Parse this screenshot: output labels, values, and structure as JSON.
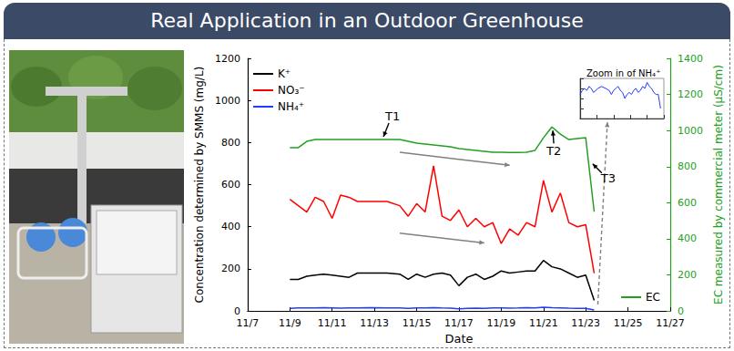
{
  "header": {
    "title": "Real Application in an Outdoor Greenhouse"
  },
  "chart_data": [
    {
      "type": "line",
      "xlabel": "Date",
      "ylabel": "Concentration determined by SMMS (mg/L)",
      "y2label": "EC measured by commercial meter (µS/cm)",
      "x": [
        9,
        9.4,
        9.8,
        10.2,
        10.6,
        11,
        11.4,
        11.8,
        12.2,
        12.8,
        13.6,
        14.2,
        14.6,
        15,
        15.4,
        15.8,
        16.2,
        16.6,
        17,
        17.4,
        17.8,
        18.2,
        18.6,
        19,
        19.4,
        19.8,
        20.2,
        20.6,
        21,
        21.4,
        21.8,
        22.2,
        22.6,
        23,
        23.4
      ],
      "xlim": [
        7,
        27
      ],
      "xticks": [
        {
          "value": 7,
          "label": "11/7"
        },
        {
          "value": 9,
          "label": "11/9"
        },
        {
          "value": 11,
          "label": "11/11"
        },
        {
          "value": 13,
          "label": "11/13"
        },
        {
          "value": 15,
          "label": "11/15"
        },
        {
          "value": 17,
          "label": "11/17"
        },
        {
          "value": 19,
          "label": "11/19"
        },
        {
          "value": 21,
          "label": "11/21"
        },
        {
          "value": 23,
          "label": "11/23"
        },
        {
          "value": 25,
          "label": "11/25"
        },
        {
          "value": 27,
          "label": "11/27"
        }
      ],
      "ylim": [
        0,
        1200
      ],
      "yticks": [
        0,
        200,
        400,
        600,
        800,
        1000,
        1200
      ],
      "y2lim": [
        0,
        1400
      ],
      "y2ticks": [
        0,
        200,
        400,
        600,
        800,
        1000,
        1200,
        1400
      ],
      "grid": false,
      "legend": "upper left",
      "annotations": [
        "T1",
        "T2",
        "T3"
      ],
      "series": [
        {
          "name": "K⁺",
          "color": "#000000",
          "values": [
            150,
            150,
            165,
            170,
            175,
            170,
            165,
            160,
            180,
            180,
            180,
            175,
            150,
            175,
            160,
            175,
            180,
            170,
            120,
            160,
            175,
            150,
            165,
            190,
            180,
            185,
            190,
            190,
            240,
            210,
            200,
            180,
            160,
            170,
            50
          ]
        },
        {
          "name": "NO₃⁻",
          "color": "#ff0000",
          "values": [
            530,
            500,
            470,
            540,
            520,
            440,
            550,
            540,
            520,
            520,
            520,
            500,
            450,
            510,
            470,
            690,
            450,
            430,
            480,
            400,
            440,
            400,
            420,
            320,
            390,
            360,
            420,
            400,
            620,
            470,
            560,
            420,
            400,
            410,
            180
          ]
        },
        {
          "name": "NH₄⁺",
          "color": "#1f3cff",
          "values": [
            12,
            14,
            15,
            14,
            16,
            15,
            13,
            14,
            15,
            16,
            15,
            14,
            12,
            14,
            15,
            16,
            14,
            13,
            10,
            12,
            13,
            12,
            14,
            15,
            13,
            14,
            16,
            15,
            18,
            16,
            15,
            13,
            12,
            12,
            5
          ]
        },
        {
          "name": "EC",
          "color": "#22a022",
          "axis": "y2",
          "values": [
            905,
            905,
            940,
            950,
            950,
            950,
            950,
            950,
            950,
            950,
            950,
            950,
            940,
            930,
            925,
            920,
            915,
            910,
            900,
            895,
            890,
            885,
            880,
            880,
            878,
            878,
            880,
            890,
            960,
            1020,
            980,
            950,
            955,
            960,
            550
          ]
        }
      ]
    },
    {
      "type": "line",
      "title": "Zoom in of NH₄⁺",
      "x": [
        9,
        9.4,
        9.8,
        10.2,
        10.6,
        11,
        11.4,
        11.8,
        12.2,
        12.8,
        13.6,
        14.2,
        14.6,
        15,
        15.4,
        15.8,
        16.2,
        16.6,
        17,
        17.4,
        17.8,
        18.2,
        18.6,
        19,
        19.4,
        19.8,
        20.2,
        20.6,
        21,
        21.4,
        21.8,
        22.2,
        22.6,
        23,
        23.4
      ],
      "xlim": [
        9,
        24
      ],
      "xticks": [
        9,
        12,
        15,
        18,
        21,
        24
      ],
      "ylim": [
        0,
        20
      ],
      "yticks": [
        0,
        5,
        10,
        15,
        20
      ],
      "tick_labels": false,
      "grid": false,
      "series": [
        {
          "color": "#1f3cff",
          "values": [
            12,
            14,
            15,
            14,
            16,
            15,
            13,
            14,
            15,
            16,
            15,
            14,
            12,
            14,
            15,
            16,
            14,
            13,
            10,
            12,
            13,
            12,
            14,
            15,
            13,
            14,
            16,
            15,
            18,
            16,
            15,
            13,
            12,
            12,
            5
          ]
        }
      ]
    }
  ]
}
